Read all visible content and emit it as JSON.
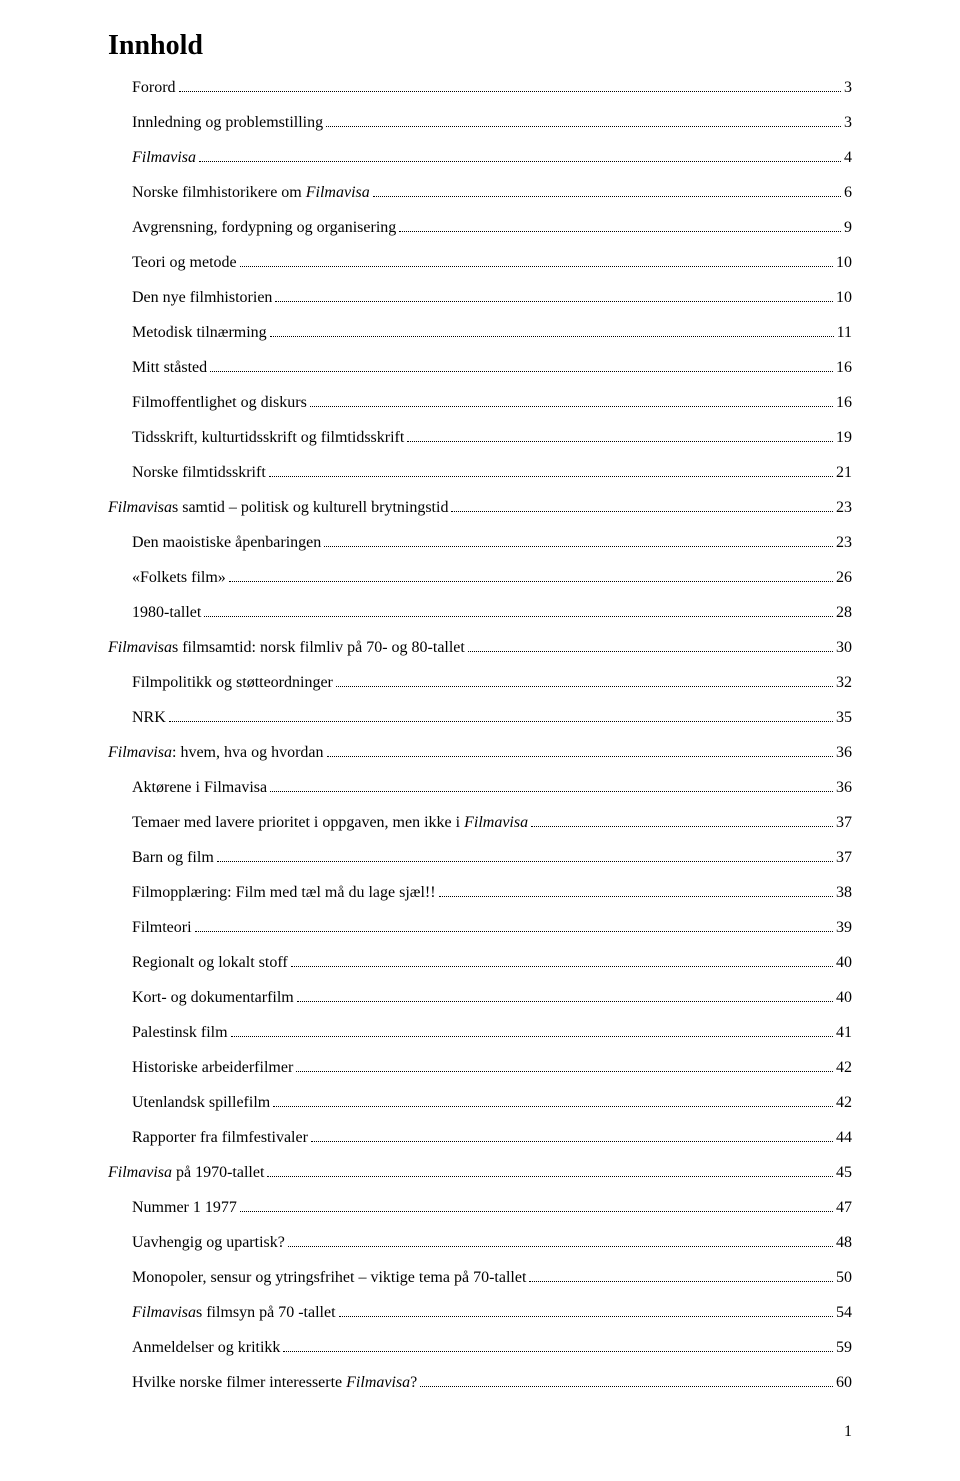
{
  "title": "Innhold",
  "toc": [
    {
      "indent": 1,
      "segments": [
        {
          "text": "Forord",
          "italic": false
        }
      ],
      "page": 3
    },
    {
      "indent": 1,
      "segments": [
        {
          "text": "Innledning og problemstilling",
          "italic": false
        }
      ],
      "page": 3
    },
    {
      "indent": 1,
      "segments": [
        {
          "text": "Filmavisa",
          "italic": true
        }
      ],
      "page": 4
    },
    {
      "indent": 1,
      "segments": [
        {
          "text": "Norske filmhistorikere om ",
          "italic": false
        },
        {
          "text": "Filmavisa",
          "italic": true
        }
      ],
      "page": 6
    },
    {
      "indent": 1,
      "segments": [
        {
          "text": "Avgrensning, fordypning og organisering",
          "italic": false
        }
      ],
      "page": 9
    },
    {
      "indent": 1,
      "segments": [
        {
          "text": "Teori og metode",
          "italic": false
        }
      ],
      "page": 10
    },
    {
      "indent": 1,
      "segments": [
        {
          "text": "Den nye filmhistorien",
          "italic": false
        }
      ],
      "page": 10
    },
    {
      "indent": 1,
      "segments": [
        {
          "text": "Metodisk tilnærming",
          "italic": false
        }
      ],
      "page": 11
    },
    {
      "indent": 1,
      "segments": [
        {
          "text": "Mitt ståsted",
          "italic": false
        }
      ],
      "page": 16
    },
    {
      "indent": 1,
      "segments": [
        {
          "text": "Filmoffentlighet og diskurs",
          "italic": false
        }
      ],
      "page": 16
    },
    {
      "indent": 1,
      "segments": [
        {
          "text": "Tidsskrift, kulturtidsskrift og filmtidsskrift",
          "italic": false
        }
      ],
      "page": 19
    },
    {
      "indent": 1,
      "segments": [
        {
          "text": "Norske filmtidsskrift",
          "italic": false
        }
      ],
      "page": 21
    },
    {
      "indent": 0,
      "segments": [
        {
          "text": "Filmavisa",
          "italic": true
        },
        {
          "text": "s samtid – politisk og kulturell brytningstid",
          "italic": false
        }
      ],
      "page": 23
    },
    {
      "indent": 1,
      "segments": [
        {
          "text": "Den maoistiske åpenbaringen",
          "italic": false
        }
      ],
      "page": 23
    },
    {
      "indent": 1,
      "segments": [
        {
          "text": "«Folkets film»",
          "italic": false
        }
      ],
      "page": 26
    },
    {
      "indent": 1,
      "segments": [
        {
          "text": "1980-tallet",
          "italic": false
        }
      ],
      "page": 28
    },
    {
      "indent": 0,
      "segments": [
        {
          "text": "Filmavisa",
          "italic": true
        },
        {
          "text": "s filmsamtid: norsk filmliv på 70- og 80-tallet",
          "italic": false
        }
      ],
      "page": 30
    },
    {
      "indent": 1,
      "segments": [
        {
          "text": "Filmpolitikk og støtteordninger",
          "italic": false
        }
      ],
      "page": 32
    },
    {
      "indent": 1,
      "segments": [
        {
          "text": "NRK",
          "italic": false
        }
      ],
      "page": 35
    },
    {
      "indent": 0,
      "segments": [
        {
          "text": "Filmavisa",
          "italic": true
        },
        {
          "text": ": hvem, hva og hvordan",
          "italic": false
        }
      ],
      "page": 36
    },
    {
      "indent": 1,
      "segments": [
        {
          "text": "Aktørene i Filmavisa",
          "italic": false
        }
      ],
      "page": 36
    },
    {
      "indent": 1,
      "segments": [
        {
          "text": "Temaer med lavere prioritet i oppgaven, men ikke i ",
          "italic": false
        },
        {
          "text": "Filmavisa",
          "italic": true
        }
      ],
      "page": 37
    },
    {
      "indent": 1,
      "segments": [
        {
          "text": "Barn og film",
          "italic": false
        }
      ],
      "page": 37
    },
    {
      "indent": 1,
      "segments": [
        {
          "text": "Filmopplæring: Film med tæl må du lage sjæl!!",
          "italic": false
        }
      ],
      "page": 38
    },
    {
      "indent": 1,
      "segments": [
        {
          "text": "Filmteori",
          "italic": false
        }
      ],
      "page": 39
    },
    {
      "indent": 1,
      "segments": [
        {
          "text": "Regionalt og lokalt stoff",
          "italic": false
        }
      ],
      "page": 40
    },
    {
      "indent": 1,
      "segments": [
        {
          "text": "Kort- og dokumentarfilm",
          "italic": false
        }
      ],
      "page": 40
    },
    {
      "indent": 1,
      "segments": [
        {
          "text": "Palestinsk film",
          "italic": false
        }
      ],
      "page": 41
    },
    {
      "indent": 1,
      "segments": [
        {
          "text": "Historiske arbeiderfilmer",
          "italic": false
        }
      ],
      "page": 42
    },
    {
      "indent": 1,
      "segments": [
        {
          "text": "Utenlandsk spillefilm",
          "italic": false
        }
      ],
      "page": 42
    },
    {
      "indent": 1,
      "segments": [
        {
          "text": "Rapporter fra filmfestivaler",
          "italic": false
        }
      ],
      "page": 44
    },
    {
      "indent": 0,
      "segments": [
        {
          "text": "Filmavisa",
          "italic": true
        },
        {
          "text": " på 1970-tallet",
          "italic": false
        }
      ],
      "page": 45
    },
    {
      "indent": 1,
      "segments": [
        {
          "text": "Nummer 1 1977",
          "italic": false
        }
      ],
      "page": 47
    },
    {
      "indent": 1,
      "segments": [
        {
          "text": "Uavhengig og upartisk?",
          "italic": false
        }
      ],
      "page": 48
    },
    {
      "indent": 1,
      "segments": [
        {
          "text": "Monopoler, sensur og ytringsfrihet – viktige tema på 70-tallet",
          "italic": false
        }
      ],
      "page": 50
    },
    {
      "indent": 1,
      "segments": [
        {
          "text": "Filmavisa",
          "italic": true
        },
        {
          "text": "s filmsyn på 70 -tallet",
          "italic": false
        }
      ],
      "page": 54
    },
    {
      "indent": 1,
      "segments": [
        {
          "text": "Anmeldelser og kritikk",
          "italic": false
        }
      ],
      "page": 59
    },
    {
      "indent": 1,
      "segments": [
        {
          "text": "Hvilke norske filmer interesserte ",
          "italic": false
        },
        {
          "text": "Filmavisa",
          "italic": true
        },
        {
          "text": "?",
          "italic": false
        }
      ],
      "page": 60
    }
  ],
  "pageNumber": "1",
  "colors": {
    "text": "#000000",
    "background": "#ffffff"
  },
  "typography": {
    "fontFamily": "Times New Roman",
    "titleFontSize": 28,
    "bodyFontSize": 16
  }
}
